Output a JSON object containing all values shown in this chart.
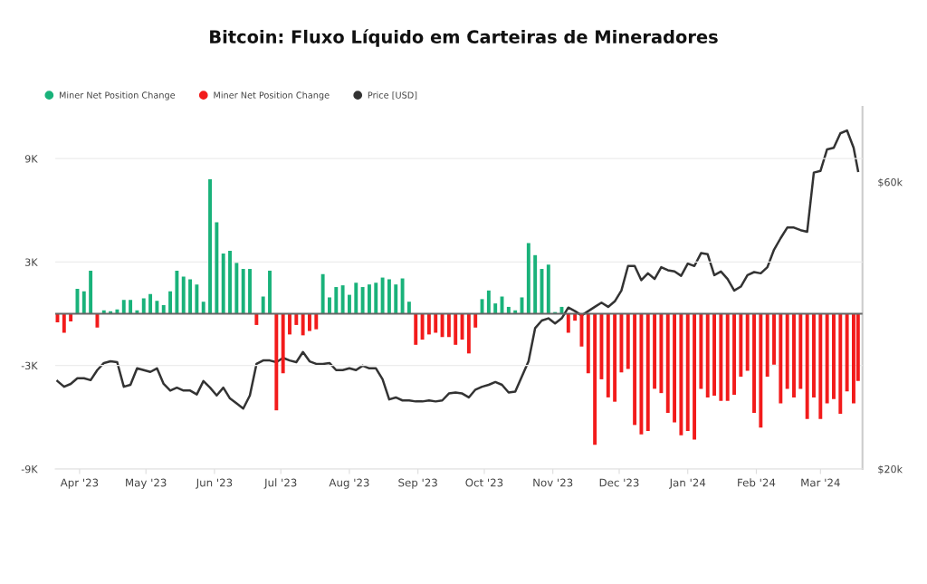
{
  "chart_data": {
    "type": "bar",
    "title": "Bitcoin: Fluxo Líquido em Carteiras de Mineradores",
    "x": [
      "2023-03-22",
      "2023-03-25",
      "2023-03-28",
      "2023-03-31",
      "2023-04-03",
      "2023-04-06",
      "2023-04-09",
      "2023-04-12",
      "2023-04-15",
      "2023-04-18",
      "2023-04-21",
      "2023-04-24",
      "2023-04-27",
      "2023-04-30",
      "2023-05-03",
      "2023-05-06",
      "2023-05-09",
      "2023-05-12",
      "2023-05-15",
      "2023-05-18",
      "2023-05-21",
      "2023-05-24",
      "2023-05-27",
      "2023-05-30",
      "2023-06-02",
      "2023-06-05",
      "2023-06-08",
      "2023-06-11",
      "2023-06-14",
      "2023-06-17",
      "2023-06-20",
      "2023-06-23",
      "2023-06-26",
      "2023-06-29",
      "2023-07-02",
      "2023-07-05",
      "2023-07-08",
      "2023-07-11",
      "2023-07-14",
      "2023-07-17",
      "2023-07-20",
      "2023-07-23",
      "2023-07-26",
      "2023-07-29",
      "2023-08-01",
      "2023-08-04",
      "2023-08-07",
      "2023-08-10",
      "2023-08-13",
      "2023-08-16",
      "2023-08-19",
      "2023-08-22",
      "2023-08-25",
      "2023-08-28",
      "2023-08-31",
      "2023-09-03",
      "2023-09-06",
      "2023-09-09",
      "2023-09-12",
      "2023-09-15",
      "2023-09-18",
      "2023-09-21",
      "2023-09-24",
      "2023-09-27",
      "2023-09-30",
      "2023-10-03",
      "2023-10-06",
      "2023-10-09",
      "2023-10-12",
      "2023-10-15",
      "2023-10-18",
      "2023-10-21",
      "2023-10-24",
      "2023-10-27",
      "2023-10-30",
      "2023-11-02",
      "2023-11-05",
      "2023-11-08",
      "2023-11-11",
      "2023-11-14",
      "2023-11-17",
      "2023-11-20",
      "2023-11-23",
      "2023-11-26",
      "2023-11-29",
      "2023-12-02",
      "2023-12-05",
      "2023-12-08",
      "2023-12-11",
      "2023-12-14",
      "2023-12-17",
      "2023-12-20",
      "2023-12-23",
      "2023-12-26",
      "2023-12-29",
      "2024-01-01",
      "2024-01-04",
      "2024-01-07",
      "2024-01-10",
      "2024-01-13",
      "2024-01-16",
      "2024-01-19",
      "2024-01-22",
      "2024-01-25",
      "2024-01-28",
      "2024-01-31",
      "2024-02-03",
      "2024-02-06",
      "2024-02-09",
      "2024-02-12",
      "2024-02-15",
      "2024-02-18",
      "2024-02-21",
      "2024-02-24",
      "2024-02-27",
      "2024-03-01",
      "2024-03-04",
      "2024-03-07",
      "2024-03-10",
      "2024-03-13",
      "2024-03-16",
      "2024-03-18"
    ],
    "series": [
      {
        "name": "Miner Net Position Change",
        "color": "#19b27a",
        "values": [
          null,
          null,
          null,
          1450,
          1300,
          2500,
          null,
          200,
          150,
          250,
          800,
          800,
          200,
          900,
          1150,
          750,
          500,
          1300,
          2500,
          2150,
          2000,
          1700,
          700,
          7800,
          5300,
          3500,
          3650,
          2950,
          2600,
          2600,
          null,
          1000,
          2500,
          null,
          null,
          null,
          null,
          null,
          null,
          null,
          2300,
          950,
          1550,
          1650,
          1100,
          1800,
          1550,
          1700,
          1800,
          2100,
          2000,
          1700,
          2050,
          700,
          null,
          null,
          null,
          null,
          null,
          null,
          null,
          null,
          null,
          null,
          850,
          1350,
          600,
          1000,
          400,
          200,
          950,
          4100,
          3400,
          2600,
          2850,
          100,
          400,
          null,
          null,
          null,
          null,
          null,
          null,
          null,
          null,
          null,
          null,
          null,
          null,
          null,
          null,
          null,
          null,
          null,
          null,
          null,
          null,
          null,
          null,
          null,
          null,
          null,
          null,
          null,
          null,
          null,
          null,
          null,
          null,
          null,
          null,
          null,
          null,
          null,
          null,
          null,
          null,
          null,
          null,
          null,
          null,
          null
        ]
      },
      {
        "name": "Miner Net Position Change",
        "color": "#f21b1b",
        "values": [
          -500,
          -1100,
          -450,
          null,
          null,
          null,
          -800,
          null,
          null,
          null,
          null,
          null,
          null,
          null,
          null,
          null,
          null,
          null,
          null,
          null,
          null,
          null,
          null,
          null,
          null,
          null,
          null,
          null,
          null,
          null,
          -650,
          null,
          null,
          -5600,
          -3450,
          -1200,
          -650,
          -1250,
          -1000,
          -900,
          null,
          null,
          null,
          null,
          null,
          null,
          null,
          null,
          null,
          null,
          null,
          null,
          null,
          null,
          -1800,
          -1500,
          -1200,
          -1100,
          -1350,
          -1350,
          -1800,
          -1500,
          -2300,
          -800,
          null,
          null,
          null,
          null,
          null,
          null,
          null,
          null,
          null,
          null,
          null,
          null,
          null,
          -1100,
          -400,
          -1900,
          -3450,
          -7600,
          -3800,
          -4850,
          -5100,
          -3400,
          -3200,
          -6450,
          -7000,
          -6800,
          -4350,
          -4600,
          -5750,
          -6300,
          -7050,
          -6800,
          -7300,
          -4350,
          -4850,
          -4750,
          -5050,
          -5050,
          -4700,
          -3650,
          -3300,
          -5750,
          -6600,
          -3650,
          -2950,
          -5200,
          -4350,
          -4850,
          -4350,
          -6100,
          -4850,
          -6100,
          -5200,
          -4950,
          -5800,
          -4500,
          -5200,
          -3900
        ]
      },
      {
        "name": "Price [USD]",
        "type": "line",
        "axis": "y2",
        "color": "#333333",
        "values": [
          28000,
          27400,
          27700,
          28300,
          28300,
          28100,
          29200,
          30000,
          30200,
          30100,
          27400,
          27600,
          29400,
          29200,
          29000,
          29400,
          27700,
          27000,
          27300,
          27000,
          27000,
          26600,
          28000,
          27300,
          26500,
          27300,
          26200,
          25700,
          25200,
          26500,
          29900,
          30300,
          30300,
          30100,
          30600,
          30300,
          30100,
          31300,
          30200,
          29900,
          29900,
          30000,
          29200,
          29200,
          29400,
          29200,
          29700,
          29400,
          29400,
          28200,
          26100,
          26300,
          26000,
          26000,
          25900,
          25900,
          26000,
          25900,
          26000,
          26700,
          26800,
          26700,
          26300,
          27100,
          27400,
          27600,
          27900,
          27600,
          26800,
          26900,
          28500,
          30200,
          34300,
          35300,
          35600,
          34900,
          35600,
          37100,
          36600,
          36000,
          36600,
          37200,
          37800,
          37200,
          38000,
          39600,
          43500,
          43500,
          41200,
          42300,
          41400,
          43300,
          42800,
          42600,
          41900,
          43900,
          43500,
          45700,
          45500,
          42000,
          42600,
          41400,
          39600,
          40200,
          42000,
          42500,
          42300,
          43300,
          46300,
          48400,
          50400,
          50400,
          49900,
          49600,
          62200,
          62600,
          68000,
          68400,
          72300,
          73100,
          68400,
          62600
        ]
      }
    ],
    "xlim": [
      "2023-03-21",
      "2024-03-20"
    ],
    "xticks": [
      {
        "value": "2023-04-01",
        "label": "Apr '23"
      },
      {
        "value": "2023-05-01",
        "label": "May '23"
      },
      {
        "value": "2023-06-01",
        "label": "Jun '23"
      },
      {
        "value": "2023-07-01",
        "label": "Jul '23"
      },
      {
        "value": "2023-08-01",
        "label": "Aug '23"
      },
      {
        "value": "2023-09-01",
        "label": "Sep '23"
      },
      {
        "value": "2023-10-01",
        "label": "Oct '23"
      },
      {
        "value": "2023-11-01",
        "label": "Nov '23"
      },
      {
        "value": "2023-12-01",
        "label": "Dec '23"
      },
      {
        "value": "2024-01-01",
        "label": "Jan '24"
      },
      {
        "value": "2024-02-01",
        "label": "Feb '24"
      },
      {
        "value": "2024-03-01",
        "label": "Mar '24"
      }
    ],
    "ylim": [
      -9000,
      12000
    ],
    "yticks": [
      {
        "value": -9000,
        "label": "-9K"
      },
      {
        "value": -3000,
        "label": "-3K"
      },
      {
        "value": 3000,
        "label": "3K"
      },
      {
        "value": 9000,
        "label": "9K"
      }
    ],
    "y2lim": [
      20000,
      80000
    ],
    "y2ticks": [
      {
        "value": 20000,
        "label": "$20k"
      },
      {
        "value": 60000,
        "label": "$60k"
      }
    ],
    "log": "y2",
    "ref_lines": [
      {
        "axis": "y",
        "value": 0,
        "color": "#666666"
      }
    ],
    "grid": "y",
    "legend": "top left",
    "marker": "none"
  }
}
